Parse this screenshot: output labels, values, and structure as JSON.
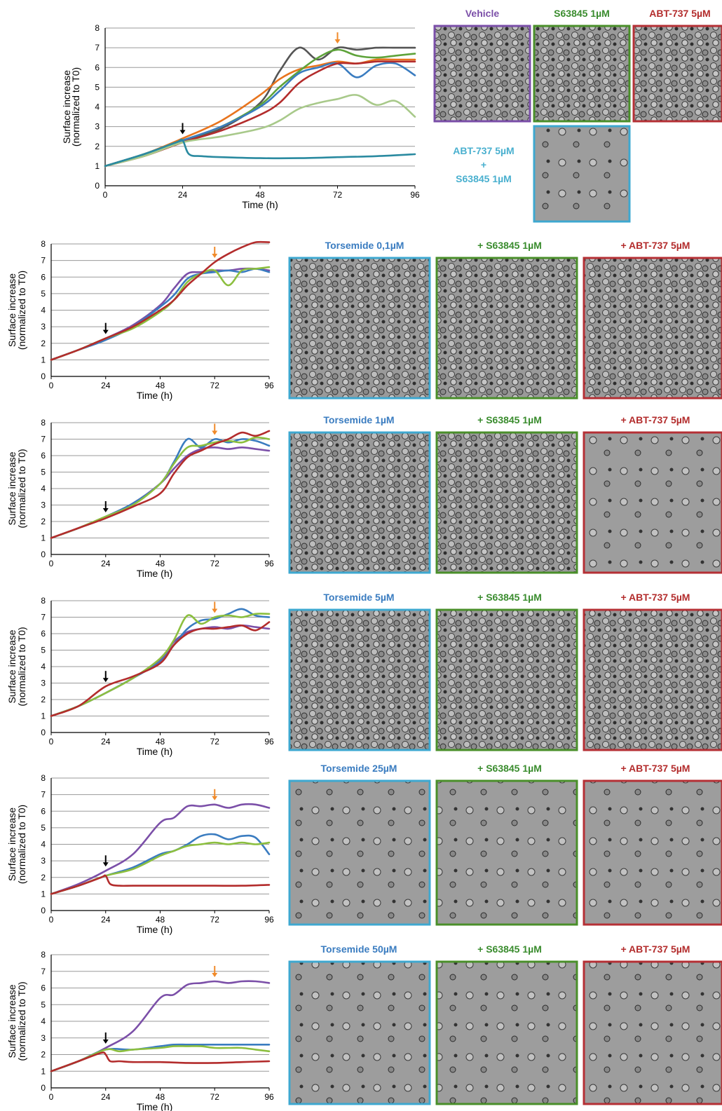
{
  "colors": {
    "vehicle": "#7b4fa8",
    "s63845": "#3a8c2e",
    "abt737": "#b32c2c",
    "combo": "#39a9c9",
    "torsemide": "#3a7cc0",
    "frame_blue": "#3ea8d0",
    "frame_green": "#4a8f2a",
    "frame_red": "#b53035",
    "frame_purple": "#7a4ea8",
    "arrow_black": "#000000",
    "arrow_orange": "#f08a2a"
  },
  "top_panel": {
    "labels": {
      "vehicle": "Vehicle",
      "s63845": "S63845 1µM",
      "abt737": "ABT-737 5µM",
      "combo_line1": "ABT-737 5µM",
      "combo_plus": "+",
      "combo_line2": "S63845 1µM"
    }
  },
  "rows": [
    {
      "title": "Torsemide 0,1µM",
      "s_label": "+ S63845 1µM",
      "a_label": "+ ABT-737 5µM"
    },
    {
      "title": "Torsemide 1µM",
      "s_label": "+ S63845 1µM",
      "a_label": "+ ABT-737 5µM"
    },
    {
      "title": "Torsemide 5µM",
      "s_label": "+ S63845 1µM",
      "a_label": "+ ABT-737 5µM"
    },
    {
      "title": "Torsemide 25µM",
      "s_label": "+ S63845 1µM",
      "a_label": "+ ABT-737 5µM"
    },
    {
      "title": "Torsemide 50µM",
      "s_label": "+ S63845 1µM",
      "a_label": "+ ABT-737 5µM"
    }
  ],
  "chart_data": [
    {
      "type": "line",
      "xlabel": "Time (h)",
      "ylabel": "Surface increase (normalized to T0)",
      "xlim": [
        0,
        96
      ],
      "ylim": [
        0,
        8
      ],
      "xticks": [
        0,
        24,
        48,
        72,
        96
      ],
      "yticks": [
        0,
        1,
        2,
        3,
        4,
        5,
        6,
        7,
        8
      ],
      "grid": true,
      "annotations": [
        {
          "type": "arrow",
          "color": "black",
          "x": 24
        },
        {
          "type": "arrow",
          "color": "orange",
          "x": 72
        }
      ],
      "series": [
        {
          "color": "#555555",
          "x": [
            0,
            12,
            24,
            36,
            48,
            54,
            60,
            66,
            72,
            78,
            84,
            90,
            96
          ],
          "y": [
            1,
            1.6,
            2.3,
            2.9,
            4.2,
            5.8,
            7.0,
            6.4,
            7.0,
            6.9,
            7.0,
            7.0,
            7.0
          ]
        },
        {
          "color": "#e8741d",
          "x": [
            0,
            12,
            24,
            36,
            48,
            54,
            60,
            66,
            72,
            78,
            84,
            90,
            96
          ],
          "y": [
            1,
            1.6,
            2.4,
            3.3,
            4.6,
            5.4,
            5.9,
            6.1,
            6.3,
            6.2,
            6.4,
            6.4,
            6.4
          ]
        },
        {
          "color": "#5ea33a",
          "x": [
            0,
            12,
            24,
            36,
            48,
            54,
            60,
            66,
            72,
            78,
            84,
            90,
            96
          ],
          "y": [
            1,
            1.6,
            2.3,
            3.0,
            4.1,
            5.0,
            5.8,
            6.5,
            6.9,
            6.6,
            6.5,
            6.6,
            6.7
          ]
        },
        {
          "color": "#3a7cc0",
          "x": [
            0,
            12,
            24,
            36,
            48,
            54,
            60,
            66,
            72,
            78,
            84,
            90,
            96
          ],
          "y": [
            1,
            1.6,
            2.3,
            3.0,
            4.0,
            4.8,
            5.7,
            6.0,
            6.2,
            5.5,
            6.1,
            6.2,
            5.6
          ]
        },
        {
          "color": "#b32c2c",
          "x": [
            0,
            12,
            24,
            36,
            48,
            54,
            60,
            66,
            72,
            78,
            84,
            90,
            96
          ],
          "y": [
            1,
            1.5,
            2.2,
            2.8,
            3.6,
            4.2,
            5.2,
            5.8,
            6.2,
            6.2,
            6.3,
            6.3,
            6.3
          ]
        },
        {
          "color": "#a8c98a",
          "x": [
            0,
            12,
            24,
            36,
            48,
            54,
            60,
            66,
            72,
            78,
            84,
            90,
            96
          ],
          "y": [
            1,
            1.5,
            2.2,
            2.5,
            2.9,
            3.3,
            3.9,
            4.2,
            4.4,
            4.6,
            4.1,
            4.3,
            3.5
          ]
        },
        {
          "color": "#2a8aa0",
          "x": [
            0,
            12,
            22,
            24,
            26,
            30,
            36,
            48,
            60,
            72,
            84,
            96
          ],
          "y": [
            1,
            1.6,
            2.2,
            2.3,
            1.6,
            1.5,
            1.45,
            1.4,
            1.4,
            1.45,
            1.5,
            1.6
          ]
        }
      ]
    },
    {
      "type": "line",
      "xlabel": "Time (h)",
      "ylabel": "Surface increase (normalized to T0)",
      "xlim": [
        0,
        96
      ],
      "ylim": [
        0,
        8
      ],
      "xticks": [
        0,
        24,
        48,
        72,
        96
      ],
      "yticks": [
        0,
        1,
        2,
        3,
        4,
        5,
        6,
        7,
        8
      ],
      "grid": true,
      "annotations": [
        {
          "type": "arrow",
          "color": "black",
          "x": 24
        },
        {
          "type": "arrow",
          "color": "orange",
          "x": 72
        }
      ],
      "series": [
        {
          "color": "#7b4fa8",
          "x": [
            0,
            12,
            24,
            36,
            48,
            54,
            60,
            66,
            72,
            78,
            84,
            90,
            96
          ],
          "y": [
            1,
            1.6,
            2.3,
            3.1,
            4.3,
            5.3,
            6.2,
            6.3,
            6.4,
            6.4,
            6.5,
            6.5,
            6.4
          ]
        },
        {
          "color": "#3a7cc0",
          "x": [
            0,
            12,
            24,
            36,
            48,
            54,
            60,
            66,
            72,
            78,
            84,
            90,
            96
          ],
          "y": [
            1,
            1.6,
            2.2,
            3.0,
            4.2,
            4.9,
            5.9,
            6.2,
            6.3,
            6.4,
            6.3,
            6.5,
            6.3
          ]
        },
        {
          "color": "#8cbf3f",
          "x": [
            0,
            12,
            24,
            36,
            48,
            54,
            60,
            66,
            72,
            78,
            84,
            90,
            96
          ],
          "y": [
            1,
            1.6,
            2.3,
            2.9,
            3.9,
            4.6,
            5.7,
            6.2,
            6.4,
            5.5,
            6.4,
            6.5,
            6.6
          ]
        },
        {
          "color": "#b32c2c",
          "x": [
            0,
            12,
            24,
            36,
            48,
            54,
            60,
            66,
            72,
            78,
            84,
            90,
            96
          ],
          "y": [
            1,
            1.6,
            2.3,
            3.0,
            4.0,
            4.6,
            5.5,
            6.2,
            6.9,
            7.4,
            7.8,
            8.1,
            8.1
          ]
        }
      ]
    },
    {
      "type": "line",
      "xlabel": "Time (h)",
      "ylabel": "Surface increase (normalized to T0)",
      "xlim": [
        0,
        96
      ],
      "ylim": [
        0,
        8
      ],
      "xticks": [
        0,
        24,
        48,
        72,
        96
      ],
      "yticks": [
        0,
        1,
        2,
        3,
        4,
        5,
        6,
        7,
        8
      ],
      "grid": true,
      "annotations": [
        {
          "type": "arrow",
          "color": "black",
          "x": 24
        },
        {
          "type": "arrow",
          "color": "orange",
          "x": 72
        }
      ],
      "series": [
        {
          "color": "#7b4fa8",
          "x": [
            0,
            12,
            24,
            36,
            48,
            54,
            60,
            66,
            72,
            78,
            84,
            90,
            96
          ],
          "y": [
            1,
            1.6,
            2.3,
            3.1,
            4.3,
            5.2,
            6.0,
            6.4,
            6.5,
            6.4,
            6.5,
            6.4,
            6.3
          ]
        },
        {
          "color": "#3a7cc0",
          "x": [
            0,
            12,
            24,
            36,
            48,
            54,
            60,
            66,
            72,
            78,
            84,
            90,
            96
          ],
          "y": [
            1,
            1.6,
            2.3,
            3.1,
            4.3,
            5.6,
            7.0,
            6.5,
            7.0,
            6.8,
            7.0,
            6.9,
            6.6
          ]
        },
        {
          "color": "#8cbf3f",
          "x": [
            0,
            12,
            24,
            36,
            48,
            54,
            60,
            66,
            72,
            78,
            84,
            90,
            96
          ],
          "y": [
            1,
            1.6,
            2.3,
            3.0,
            4.3,
            5.5,
            6.5,
            6.6,
            6.8,
            6.9,
            6.8,
            7.1,
            7.0
          ]
        },
        {
          "color": "#b32c2c",
          "x": [
            0,
            12,
            24,
            36,
            48,
            54,
            60,
            66,
            72,
            78,
            84,
            90,
            96
          ],
          "y": [
            1,
            1.6,
            2.2,
            2.9,
            3.7,
            4.9,
            5.9,
            6.3,
            6.7,
            7.0,
            7.4,
            7.2,
            7.5
          ]
        }
      ]
    },
    {
      "type": "line",
      "xlabel": "Time (h)",
      "ylabel": "Surface increase (normalized to T0)",
      "xlim": [
        0,
        96
      ],
      "ylim": [
        0,
        8
      ],
      "xticks": [
        0,
        24,
        48,
        72,
        96
      ],
      "yticks": [
        0,
        1,
        2,
        3,
        4,
        5,
        6,
        7,
        8
      ],
      "grid": true,
      "annotations": [
        {
          "type": "arrow",
          "color": "black",
          "x": 24
        },
        {
          "type": "arrow",
          "color": "orange",
          "x": 72
        }
      ],
      "series": [
        {
          "color": "#7b4fa8",
          "x": [
            0,
            12,
            24,
            36,
            48,
            54,
            60,
            66,
            72,
            78,
            84,
            90,
            96
          ],
          "y": [
            1,
            1.6,
            2.4,
            3.3,
            4.4,
            5.5,
            6.1,
            6.3,
            6.4,
            6.3,
            6.5,
            6.4,
            6.3
          ]
        },
        {
          "color": "#3a7cc0",
          "x": [
            0,
            12,
            24,
            36,
            48,
            54,
            60,
            66,
            72,
            78,
            84,
            90,
            96
          ],
          "y": [
            1,
            1.6,
            2.4,
            3.3,
            4.3,
            5.3,
            6.3,
            6.8,
            6.9,
            7.2,
            7.5,
            7.1,
            7.0
          ]
        },
        {
          "color": "#8cbf3f",
          "x": [
            0,
            12,
            24,
            36,
            48,
            54,
            60,
            66,
            72,
            78,
            84,
            90,
            96
          ],
          "y": [
            1,
            1.6,
            2.4,
            3.3,
            4.5,
            5.6,
            7.1,
            6.6,
            7.0,
            7.1,
            7.0,
            7.2,
            7.2
          ]
        },
        {
          "color": "#b32c2c",
          "x": [
            0,
            12,
            24,
            36,
            48,
            54,
            60,
            66,
            72,
            78,
            84,
            90,
            96
          ],
          "y": [
            1,
            1.6,
            2.8,
            3.4,
            4.2,
            5.3,
            6.0,
            6.3,
            6.3,
            6.4,
            6.5,
            6.2,
            6.7
          ]
        }
      ]
    },
    {
      "type": "line",
      "xlabel": "Time (h)",
      "ylabel": "Surface increase (normalized to T0)",
      "xlim": [
        0,
        96
      ],
      "ylim": [
        0,
        8
      ],
      "xticks": [
        0,
        24,
        48,
        72,
        96
      ],
      "yticks": [
        0,
        1,
        2,
        3,
        4,
        5,
        6,
        7,
        8
      ],
      "grid": true,
      "annotations": [
        {
          "type": "arrow",
          "color": "black",
          "x": 24
        },
        {
          "type": "arrow",
          "color": "orange",
          "x": 72
        }
      ],
      "series": [
        {
          "color": "#7b4fa8",
          "x": [
            0,
            12,
            24,
            36,
            48,
            54,
            60,
            66,
            72,
            78,
            84,
            90,
            96
          ],
          "y": [
            1,
            1.6,
            2.4,
            3.4,
            5.3,
            5.6,
            6.3,
            6.3,
            6.4,
            6.2,
            6.4,
            6.4,
            6.2
          ]
        },
        {
          "color": "#3a7cc0",
          "x": [
            0,
            12,
            24,
            36,
            48,
            54,
            60,
            66,
            72,
            78,
            84,
            90,
            96
          ],
          "y": [
            1,
            1.5,
            2.1,
            2.6,
            3.4,
            3.6,
            4.0,
            4.5,
            4.6,
            4.3,
            4.5,
            4.4,
            3.4
          ]
        },
        {
          "color": "#8cbf3f",
          "x": [
            0,
            12,
            24,
            36,
            48,
            54,
            60,
            66,
            72,
            78,
            84,
            90,
            96
          ],
          "y": [
            1,
            1.5,
            2.1,
            2.5,
            3.3,
            3.6,
            3.9,
            4.0,
            4.1,
            4.0,
            4.1,
            4.0,
            4.1
          ]
        },
        {
          "color": "#b32c2c",
          "x": [
            0,
            12,
            22,
            24,
            26,
            30,
            36,
            48,
            60,
            72,
            84,
            96
          ],
          "y": [
            1,
            1.5,
            2.0,
            2.1,
            1.6,
            1.5,
            1.5,
            1.5,
            1.5,
            1.5,
            1.5,
            1.55
          ]
        }
      ]
    },
    {
      "type": "line",
      "xlabel": "Time (h)",
      "ylabel": "Surface increase (normalized to T0)",
      "xlim": [
        0,
        96
      ],
      "ylim": [
        0,
        8
      ],
      "xticks": [
        0,
        24,
        48,
        72,
        96
      ],
      "yticks": [
        0,
        1,
        2,
        3,
        4,
        5,
        6,
        7,
        8
      ],
      "grid": true,
      "annotations": [
        {
          "type": "arrow",
          "color": "black",
          "x": 24
        },
        {
          "type": "arrow",
          "color": "orange",
          "x": 72
        }
      ],
      "series": [
        {
          "color": "#7b4fa8",
          "x": [
            0,
            12,
            24,
            36,
            48,
            54,
            60,
            66,
            72,
            78,
            84,
            90,
            96
          ],
          "y": [
            1,
            1.6,
            2.4,
            3.4,
            5.4,
            5.6,
            6.2,
            6.3,
            6.4,
            6.3,
            6.4,
            6.4,
            6.3
          ]
        },
        {
          "color": "#3a7cc0",
          "x": [
            0,
            12,
            24,
            36,
            48,
            54,
            60,
            66,
            72,
            78,
            84,
            90,
            96
          ],
          "y": [
            1,
            1.6,
            2.3,
            2.3,
            2.5,
            2.6,
            2.6,
            2.6,
            2.6,
            2.6,
            2.6,
            2.6,
            2.6
          ]
        },
        {
          "color": "#8cbf3f",
          "x": [
            0,
            12,
            24,
            30,
            36,
            48,
            54,
            60,
            66,
            72,
            78,
            84,
            90,
            96
          ],
          "y": [
            1,
            1.6,
            2.3,
            2.2,
            2.3,
            2.4,
            2.5,
            2.5,
            2.5,
            2.4,
            2.4,
            2.4,
            2.3,
            2.2
          ]
        },
        {
          "color": "#b32c2c",
          "x": [
            0,
            12,
            22,
            24,
            26,
            30,
            36,
            48,
            60,
            72,
            84,
            96
          ],
          "y": [
            1,
            1.6,
            2.1,
            2.0,
            1.6,
            1.6,
            1.55,
            1.55,
            1.5,
            1.5,
            1.55,
            1.6
          ]
        }
      ]
    }
  ]
}
